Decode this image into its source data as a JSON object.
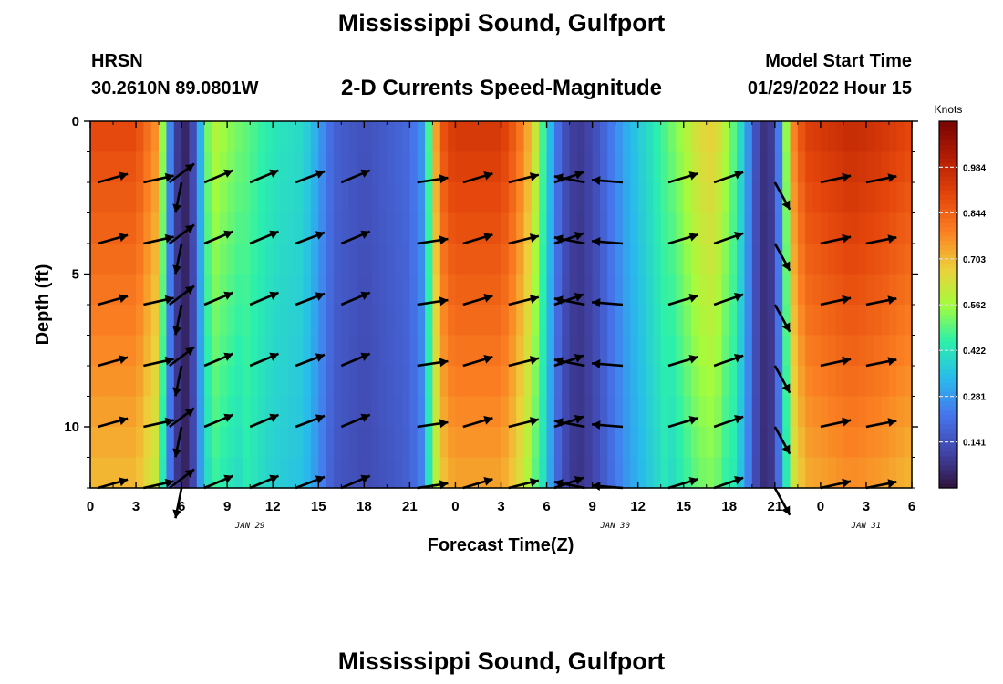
{
  "title": "Mississippi Sound, Gulfport",
  "station_id": "HRSN",
  "station_coords": "30.2610N  89.0801W",
  "subtitle": "2-D Currents Speed-Magnitude",
  "model_start_label": "Model Start Time",
  "model_start_value": "01/29/2022 Hour 15",
  "second_panel_title": "Mississippi Sound, Gulfport",
  "chart_data": {
    "type": "heatmap",
    "xlabel": "Forecast Time(Z)",
    "ylabel": "Depth (ft)",
    "x_ticks": [
      "0",
      "3",
      "6",
      "9",
      "12",
      "15",
      "18",
      "21",
      "0",
      "3",
      "6",
      "9",
      "12",
      "15",
      "18",
      "21",
      "0",
      "3",
      "6"
    ],
    "date_labels": [
      {
        "label": "JAN 29",
        "x_hour": 10.5
      },
      {
        "label": "JAN 30",
        "x_hour": 34.5
      },
      {
        "label": "JAN 31",
        "x_hour": 51
      }
    ],
    "xlim_hours": [
      0,
      54
    ],
    "y_ticks": [
      0,
      5,
      10
    ],
    "ylim_ft": [
      0,
      12
    ],
    "y_reversed": true,
    "colorbar": {
      "label": "Knots",
      "ticks": [
        "0.984",
        "0.844",
        "0.703",
        "0.562",
        "0.422",
        "0.281",
        "0.141"
      ],
      "tick_values": [
        0.984,
        0.844,
        0.703,
        0.562,
        0.422,
        0.281,
        0.141
      ],
      "range": [
        0,
        1.125
      ]
    },
    "speed_profile_hours": [
      0,
      3,
      4.5,
      5,
      5.5,
      6,
      6.5,
      7,
      7.5,
      8,
      9,
      12,
      14,
      15,
      16,
      18,
      21,
      22,
      22.5,
      23,
      23.5,
      24,
      27,
      28,
      29,
      30,
      31,
      32,
      33,
      35,
      38,
      40,
      41,
      42,
      43,
      43.5,
      44,
      44.5,
      45,
      45.5,
      46,
      47,
      50,
      52,
      54
    ],
    "speed_profile_knots": [
      0.9,
      0.9,
      0.75,
      0.35,
      0.15,
      0.03,
      0.06,
      0.2,
      0.45,
      0.6,
      0.55,
      0.43,
      0.4,
      0.3,
      0.18,
      0.14,
      0.2,
      0.3,
      0.65,
      0.85,
      0.92,
      0.94,
      0.94,
      0.85,
      0.7,
      0.4,
      0.15,
      0.08,
      0.12,
      0.3,
      0.5,
      0.65,
      0.68,
      0.55,
      0.35,
      0.2,
      0.08,
      0.06,
      0.12,
      0.35,
      0.75,
      0.92,
      0.98,
      0.95,
      0.9
    ],
    "vector_depths_ft": [
      2,
      4,
      6,
      8,
      10,
      12
    ],
    "vectors": [
      {
        "hour": 0.5,
        "u": 1,
        "v": 0.28
      },
      {
        "hour": 3.5,
        "u": 1,
        "v": 0.22
      },
      {
        "hour": 5.2,
        "u": 0.6,
        "v": 0.45
      },
      {
        "hour": 6.0,
        "u": -0.2,
        "v": -1
      },
      {
        "hour": 7.5,
        "u": 1,
        "v": 0.42
      },
      {
        "hour": 10.5,
        "u": 1,
        "v": 0.42
      },
      {
        "hour": 13.5,
        "u": 1,
        "v": 0.38
      },
      {
        "hour": 16.5,
        "u": 1,
        "v": 0.42
      },
      {
        "hour": 21.5,
        "u": 1,
        "v": 0.15
      },
      {
        "hour": 24.5,
        "u": 1,
        "v": 0.3
      },
      {
        "hour": 27.5,
        "u": 1,
        "v": 0.25
      },
      {
        "hour": 30.5,
        "u": 1,
        "v": 0.35
      },
      {
        "hour": 32.5,
        "u": -1,
        "v": 0.2
      },
      {
        "hour": 35.0,
        "u": -1,
        "v": 0.08
      },
      {
        "hour": 38.0,
        "u": 1,
        "v": 0.3
      },
      {
        "hour": 41.0,
        "u": 1,
        "v": 0.35
      },
      {
        "hour": 45.0,
        "u": 0.55,
        "v": -1
      },
      {
        "hour": 48.0,
        "u": 1,
        "v": 0.22
      },
      {
        "hour": 51.0,
        "u": 1,
        "v": 0.2
      }
    ]
  }
}
